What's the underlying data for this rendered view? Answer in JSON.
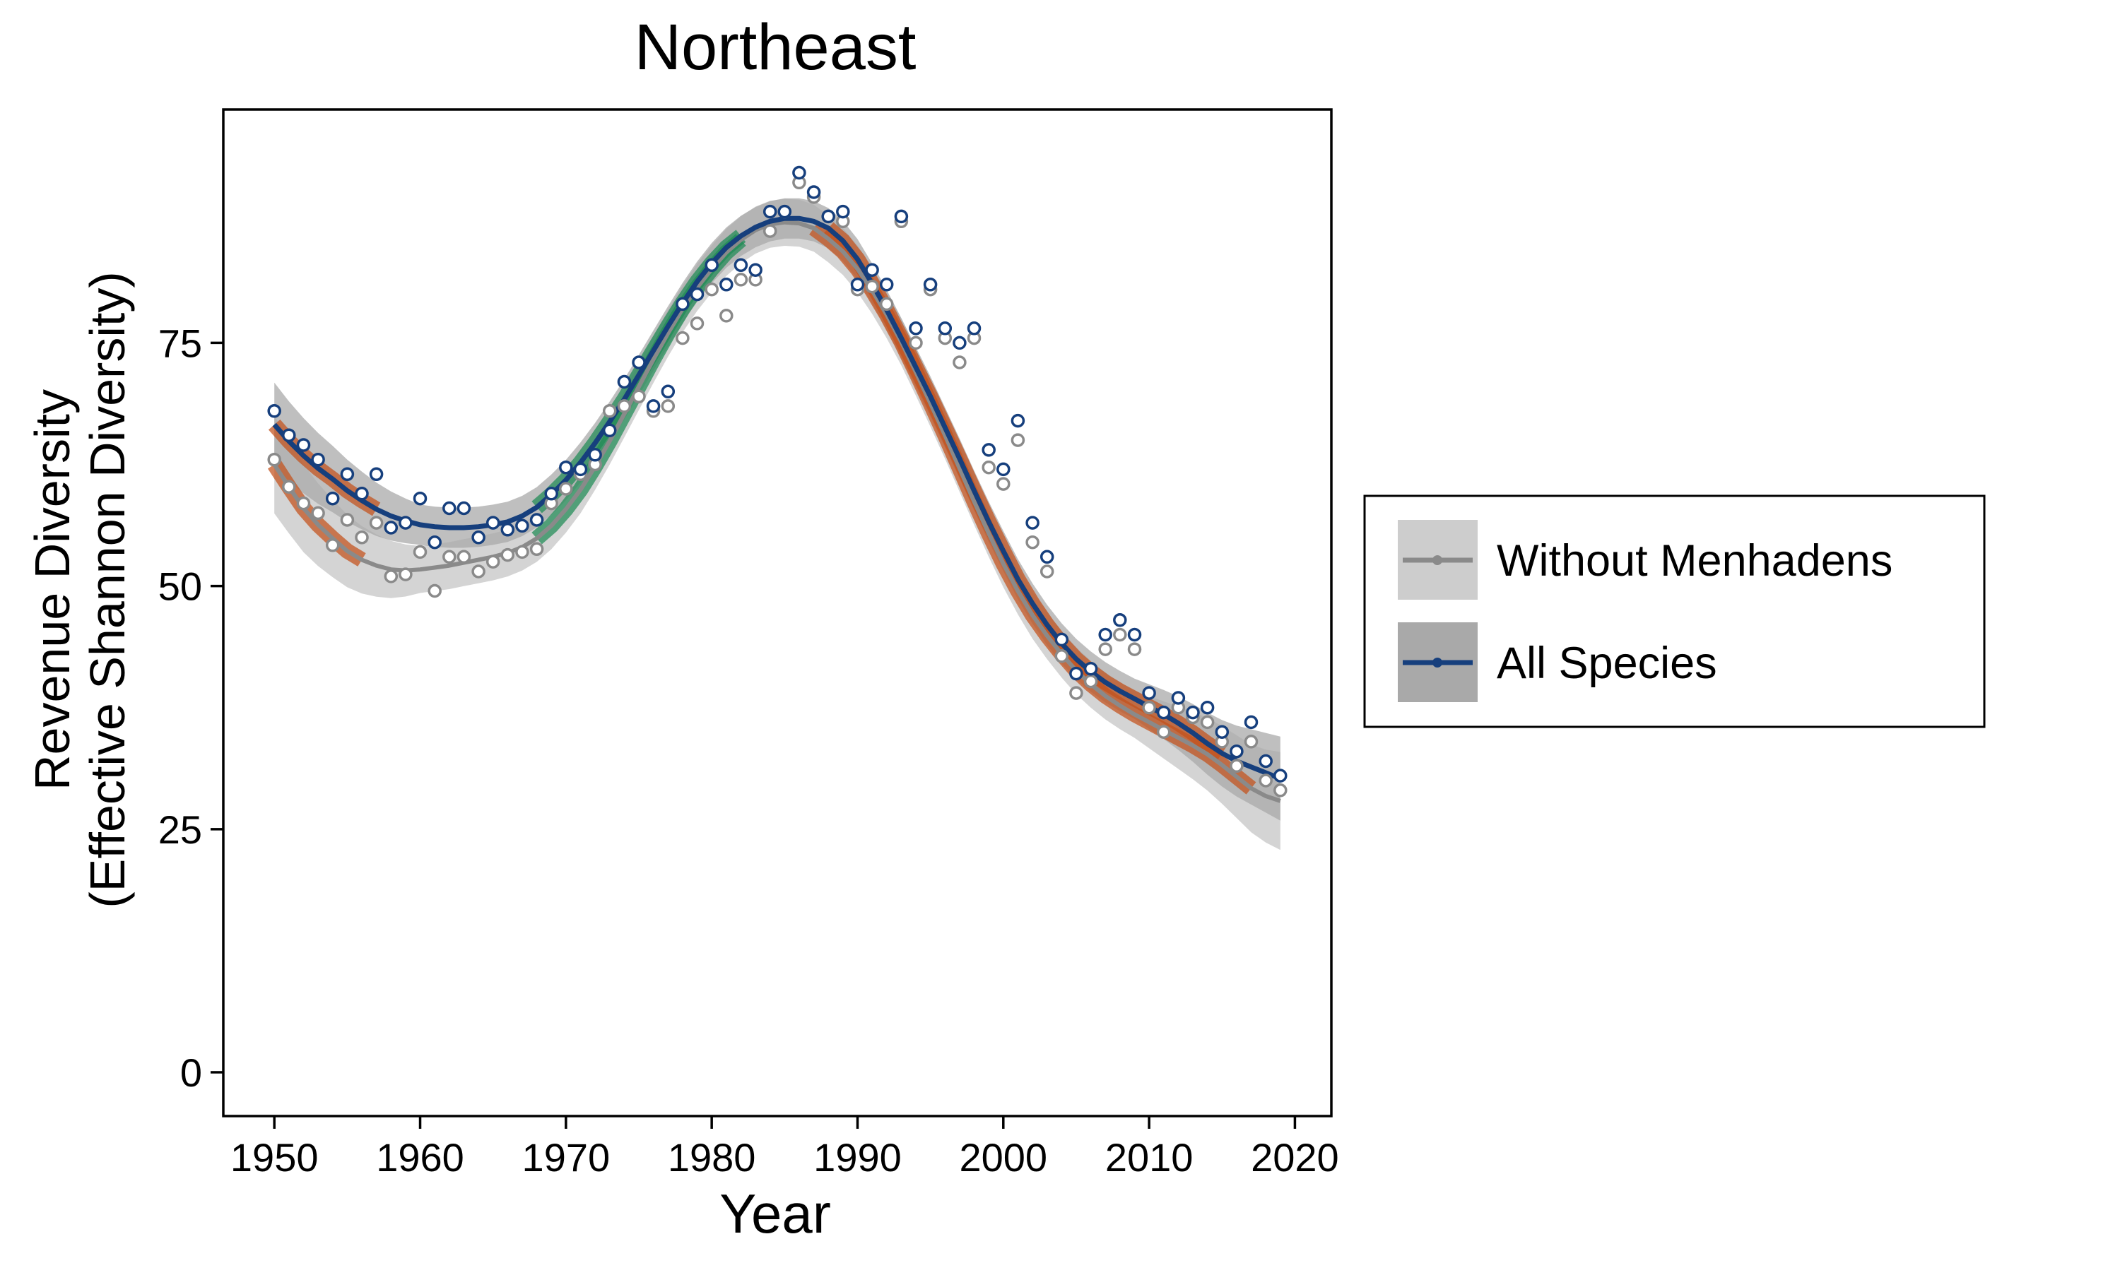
{
  "chart_data": {
    "type": "scatter",
    "title": "Northeast",
    "xlabel": "Year",
    "ylabel_line1": "Revenue Diversity",
    "ylabel_line2": "(Effective Shannon Diversity)",
    "xlim": [
      1946.5,
      2022.5
    ],
    "ylim": [
      -4.5,
      99
    ],
    "x_ticks": [
      1950,
      1960,
      1970,
      1980,
      1990,
      2000,
      2010,
      2020
    ],
    "x_tick_labels": [
      "1950",
      "1960",
      "1970",
      "1980",
      "1990",
      "2000",
      "2010",
      "2020"
    ],
    "y_ticks": [
      0,
      25,
      50,
      75
    ],
    "y_tick_labels": [
      "0",
      "25",
      "50",
      "75"
    ],
    "grid": false,
    "legend_position": "right",
    "trend_colors": {
      "increasing": "#1e8a55",
      "decreasing": "#c4501a"
    },
    "band_colors": {
      "Without Menhadens": "#cdcdcd",
      "All Species": "#a9a9a9"
    },
    "series": [
      {
        "name": "Without Menhadens",
        "color": "#8a8a8a",
        "band_color": "#cdcdcd",
        "years": [
          1950,
          1951,
          1952,
          1953,
          1954,
          1955,
          1956,
          1957,
          1958,
          1959,
          1960,
          1961,
          1962,
          1963,
          1964,
          1965,
          1966,
          1967,
          1968,
          1969,
          1970,
          1971,
          1972,
          1973,
          1974,
          1975,
          1976,
          1977,
          1978,
          1979,
          1980,
          1981,
          1982,
          1983,
          1984,
          1985,
          1986,
          1987,
          1988,
          1989,
          1990,
          1991,
          1992,
          1993,
          1994,
          1995,
          1996,
          1997,
          1998,
          1999,
          2000,
          2001,
          2002,
          2003,
          2004,
          2005,
          2006,
          2007,
          2008,
          2009,
          2010,
          2011,
          2012,
          2013,
          2014,
          2015,
          2016,
          2017,
          2018,
          2019
        ],
        "observed": [
          63,
          60.2,
          58.5,
          57.5,
          54.2,
          56.8,
          55,
          56.5,
          51,
          51.2,
          53.5,
          49.5,
          53,
          53,
          51.5,
          52.5,
          53.2,
          53.5,
          53.8,
          58.5,
          60,
          61.5,
          62.5,
          68,
          68.5,
          69.5,
          68,
          68.5,
          75.5,
          77,
          80.5,
          77.8,
          81.5,
          81.5,
          86.5,
          88.5,
          91.5,
          90,
          88,
          87.5,
          80.5,
          80.8,
          79,
          87.5,
          75,
          80.5,
          75.5,
          73,
          75.5,
          62.2,
          60.5,
          65,
          54.5,
          51.5,
          42.8,
          39,
          40.2,
          43.5,
          45,
          43.5,
          37.5,
          35,
          37.5,
          36.5,
          36,
          34,
          31.5,
          34,
          30,
          29
        ],
        "fit": [
          62.5,
          60.2,
          58.0,
          56.3,
          54.9,
          53.6,
          52.7,
          52.1,
          51.7,
          51.6,
          51.7,
          51.9,
          52.1,
          52.4,
          52.7,
          53.0,
          53.4,
          54.0,
          54.9,
          56.2,
          57.9,
          59.9,
          62.3,
          64.9,
          67.7,
          70.5,
          73.3,
          76.0,
          78.5,
          80.7,
          82.6,
          84.3,
          85.6,
          86.6,
          87.2,
          87.4,
          87.3,
          86.8,
          85.7,
          84.4,
          82.6,
          80.4,
          77.9,
          75.1,
          72.0,
          68.8,
          65.5,
          62.1,
          58.7,
          55.4,
          52.3,
          49.5,
          47.0,
          44.9,
          43.0,
          41.3,
          39.9,
          38.7,
          37.7,
          36.8,
          36.0,
          35.2,
          34.4,
          33.6,
          32.7,
          31.6,
          30.4,
          29.2,
          28.4,
          27.9
        ]
      },
      {
        "name": "All Species",
        "color": "#163f7d",
        "band_color": "#a9a9a9",
        "years": [
          1950,
          1951,
          1952,
          1953,
          1954,
          1955,
          1956,
          1957,
          1958,
          1959,
          1960,
          1961,
          1962,
          1963,
          1964,
          1965,
          1966,
          1967,
          1968,
          1969,
          1970,
          1971,
          1972,
          1973,
          1974,
          1975,
          1976,
          1977,
          1978,
          1979,
          1980,
          1981,
          1982,
          1983,
          1984,
          1985,
          1986,
          1987,
          1988,
          1989,
          1990,
          1991,
          1992,
          1993,
          1994,
          1995,
          1996,
          1997,
          1998,
          1999,
          2000,
          2001,
          2002,
          2003,
          2004,
          2005,
          2006,
          2007,
          2008,
          2009,
          2010,
          2011,
          2012,
          2013,
          2014,
          2015,
          2016,
          2017,
          2018,
          2019
        ],
        "observed": [
          68,
          65.5,
          64.5,
          63,
          59,
          61.5,
          59.5,
          61.5,
          56,
          56.5,
          59,
          54.5,
          58,
          58,
          55,
          56.5,
          55.8,
          56.2,
          56.8,
          59.5,
          62.2,
          62,
          63.5,
          66,
          71,
          73,
          68.5,
          70,
          79,
          80,
          83,
          81,
          83,
          82.5,
          88.5,
          88.5,
          92.5,
          90.5,
          88,
          88.5,
          81,
          82.5,
          81,
          88,
          76.5,
          81,
          76.5,
          75,
          76.5,
          64,
          62,
          67,
          56.5,
          53,
          44.5,
          41,
          41.5,
          45,
          46.5,
          45,
          39,
          37,
          38.5,
          37,
          37.5,
          35,
          33,
          36,
          32,
          30.5
        ],
        "fit": [
          66.6,
          64.9,
          63.4,
          62.1,
          61.0,
          59.8,
          58.8,
          57.9,
          57.2,
          56.7,
          56.3,
          56.1,
          56.0,
          56.0,
          56.1,
          56.3,
          56.6,
          57.2,
          58.1,
          59.4,
          60.9,
          62.7,
          64.7,
          66.9,
          69.2,
          71.7,
          74.2,
          76.7,
          79.1,
          81.3,
          83.2,
          84.8,
          86.0,
          86.9,
          87.5,
          87.8,
          87.8,
          87.5,
          86.8,
          85.5,
          83.6,
          81.1,
          78.4,
          75.5,
          72.5,
          69.5,
          66.3,
          63.1,
          59.8,
          56.6,
          53.6,
          50.7,
          48.2,
          46.0,
          44.1,
          42.5,
          41.2,
          40.1,
          39.2,
          38.4,
          37.6,
          36.8,
          35.9,
          34.9,
          33.8,
          32.8,
          32.0,
          31.4,
          30.8,
          30.2
        ]
      }
    ]
  }
}
